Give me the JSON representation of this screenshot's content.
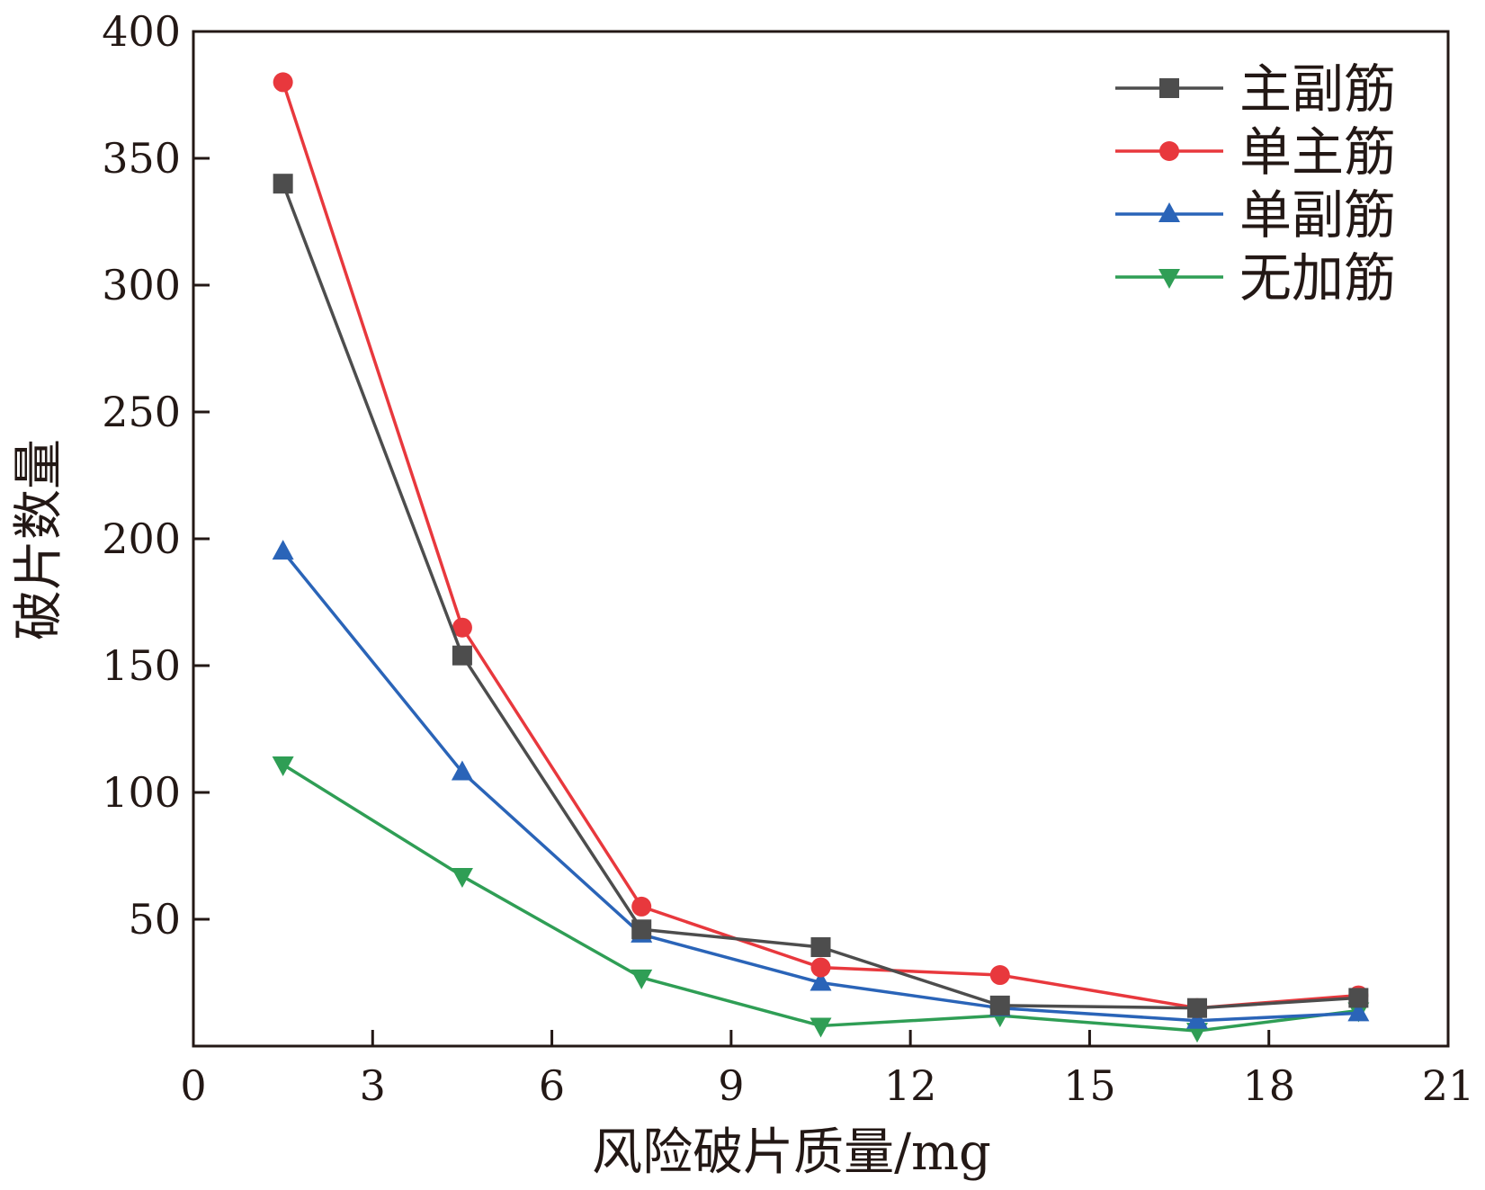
{
  "chart_data": {
    "type": "line",
    "title": "",
    "xlabel": "风险破片质量/mg",
    "ylabel": "破片数量",
    "xlim": [
      0,
      21
    ],
    "ylim": [
      0,
      400
    ],
    "x_ticks": [
      0,
      3,
      6,
      9,
      12,
      15,
      18,
      21
    ],
    "y_ticks": [
      50,
      100,
      150,
      200,
      250,
      300,
      350,
      400
    ],
    "grid": false,
    "legend_position": "top-right",
    "x": [
      1.5,
      4.5,
      7.5,
      10.5,
      13.5,
      16.8,
      19.5
    ],
    "series": [
      {
        "name": "主副筋",
        "color": "#4d4d4d",
        "marker": "square",
        "values": [
          340,
          154,
          46,
          39,
          16,
          15,
          19
        ]
      },
      {
        "name": "单主筋",
        "color": "#e8383d",
        "marker": "circle",
        "values": [
          380,
          165,
          55,
          31,
          28,
          15,
          20
        ]
      },
      {
        "name": "单副筋",
        "color": "#2a64b8",
        "marker": "triangle-up",
        "values": [
          195,
          108,
          44,
          25,
          15,
          10,
          13
        ]
      },
      {
        "name": "无加筋",
        "color": "#2f9e55",
        "marker": "triangle-down",
        "values": [
          111,
          67,
          27,
          8,
          12,
          6,
          14
        ]
      }
    ]
  }
}
